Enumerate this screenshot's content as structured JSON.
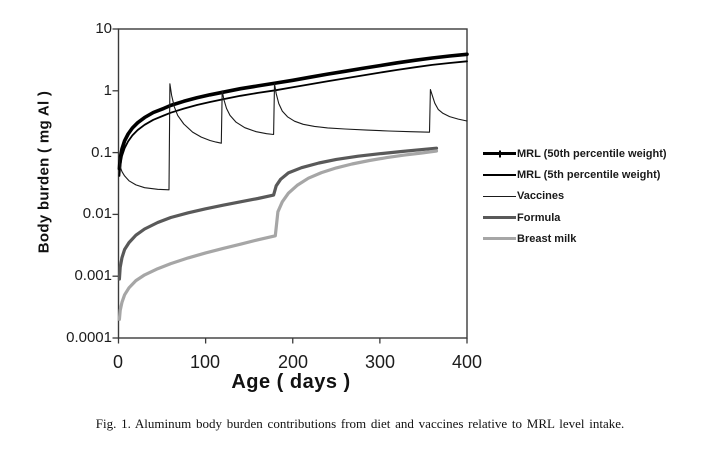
{
  "figure": {
    "caption": "Fig. 1. Aluminum body burden contributions from diet and vaccines relative to MRL level intake."
  },
  "chart_data": {
    "type": "line",
    "title": "",
    "xlabel": "Age ( days )",
    "ylabel": "Body burden ( mg Al )",
    "xlim": [
      0,
      400
    ],
    "ylim": [
      0.0001,
      10
    ],
    "y_scale": "log",
    "grid": false,
    "legend_position": "right-outside",
    "x_tick_labels": [
      "0",
      "100",
      "200",
      "300",
      "400"
    ],
    "x_ticks": [
      0,
      100,
      200,
      300,
      400
    ],
    "y_tick_labels": [
      "10",
      "1",
      "0.1",
      "0.01",
      "0.001",
      "0.0001"
    ],
    "y_ticks": [
      10,
      1,
      0.1,
      0.01,
      0.001,
      0.0001
    ],
    "axis_color": "#3a3a3a",
    "series": [
      {
        "id": "mrl-50",
        "name": "MRL (50th percentile weight)",
        "color": "#000000",
        "width": 3.6,
        "points": [
          [
            1,
            0.055
          ],
          [
            2,
            0.08
          ],
          [
            4,
            0.115
          ],
          [
            7,
            0.155
          ],
          [
            11,
            0.2
          ],
          [
            16,
            0.25
          ],
          [
            22,
            0.305
          ],
          [
            30,
            0.37
          ],
          [
            40,
            0.445
          ],
          [
            52,
            0.52
          ],
          [
            60,
            0.58
          ],
          [
            75,
            0.675
          ],
          [
            90,
            0.77
          ],
          [
            105,
            0.86
          ],
          [
            120,
            0.95
          ],
          [
            140,
            1.08
          ],
          [
            160,
            1.2
          ],
          [
            180,
            1.33
          ],
          [
            200,
            1.48
          ],
          [
            220,
            1.66
          ],
          [
            240,
            1.86
          ],
          [
            260,
            2.07
          ],
          [
            280,
            2.3
          ],
          [
            300,
            2.56
          ],
          [
            320,
            2.84
          ],
          [
            340,
            3.12
          ],
          [
            360,
            3.4
          ],
          [
            380,
            3.66
          ],
          [
            400,
            3.9
          ]
        ]
      },
      {
        "id": "mrl-5",
        "name": "MRL (5th percentile weight)",
        "color": "#000000",
        "width": 1.8,
        "points": [
          [
            1,
            0.042
          ],
          [
            2,
            0.061
          ],
          [
            4,
            0.088
          ],
          [
            7,
            0.118
          ],
          [
            11,
            0.152
          ],
          [
            16,
            0.19
          ],
          [
            22,
            0.232
          ],
          [
            30,
            0.282
          ],
          [
            40,
            0.34
          ],
          [
            52,
            0.398
          ],
          [
            60,
            0.443
          ],
          [
            75,
            0.516
          ],
          [
            90,
            0.59
          ],
          [
            105,
            0.66
          ],
          [
            120,
            0.73
          ],
          [
            140,
            0.83
          ],
          [
            160,
            0.925
          ],
          [
            180,
            1.02
          ],
          [
            200,
            1.14
          ],
          [
            220,
            1.28
          ],
          [
            240,
            1.43
          ],
          [
            260,
            1.59
          ],
          [
            280,
            1.77
          ],
          [
            300,
            1.97
          ],
          [
            320,
            2.18
          ],
          [
            340,
            2.4
          ],
          [
            360,
            2.62
          ],
          [
            380,
            2.82
          ],
          [
            400,
            3.0
          ]
        ]
      },
      {
        "id": "vaccines",
        "name": "Vaccines",
        "color": "#1a1a1a",
        "width": 1.1,
        "points": [
          [
            0.5,
            0.085
          ],
          [
            1,
            0.07
          ],
          [
            2,
            0.059
          ],
          [
            4,
            0.049
          ],
          [
            7,
            0.042
          ],
          [
            12,
            0.035
          ],
          [
            20,
            0.03
          ],
          [
            30,
            0.027
          ],
          [
            45,
            0.0255
          ],
          [
            58,
            0.025
          ],
          [
            59,
            1.3
          ],
          [
            61,
            0.85
          ],
          [
            64,
            0.55
          ],
          [
            68,
            0.4
          ],
          [
            75,
            0.29
          ],
          [
            85,
            0.215
          ],
          [
            95,
            0.178
          ],
          [
            105,
            0.157
          ],
          [
            112,
            0.148
          ],
          [
            118,
            0.142
          ],
          [
            119,
            1.0
          ],
          [
            121,
            0.72
          ],
          [
            124,
            0.52
          ],
          [
            128,
            0.4
          ],
          [
            135,
            0.31
          ],
          [
            145,
            0.253
          ],
          [
            158,
            0.218
          ],
          [
            170,
            0.202
          ],
          [
            178,
            0.196
          ],
          [
            179,
            1.3
          ],
          [
            181,
            0.9
          ],
          [
            184,
            0.62
          ],
          [
            188,
            0.47
          ],
          [
            194,
            0.38
          ],
          [
            202,
            0.322
          ],
          [
            212,
            0.287
          ],
          [
            225,
            0.265
          ],
          [
            240,
            0.251
          ],
          [
            260,
            0.241
          ],
          [
            285,
            0.231
          ],
          [
            310,
            0.224
          ],
          [
            335,
            0.218
          ],
          [
            357,
            0.214
          ],
          [
            358,
            1.05
          ],
          [
            360,
            0.85
          ],
          [
            363,
            0.63
          ],
          [
            367,
            0.5
          ],
          [
            372,
            0.435
          ],
          [
            380,
            0.383
          ],
          [
            390,
            0.348
          ],
          [
            400,
            0.325
          ]
        ]
      },
      {
        "id": "formula",
        "name": "Formula",
        "color": "#595959",
        "width": 3.2,
        "points": [
          [
            1,
            0.0009
          ],
          [
            2,
            0.0014
          ],
          [
            4,
            0.002
          ],
          [
            7,
            0.0027
          ],
          [
            12,
            0.0035
          ],
          [
            20,
            0.0046
          ],
          [
            30,
            0.0058
          ],
          [
            45,
            0.0074
          ],
          [
            60,
            0.0089
          ],
          [
            80,
            0.0106
          ],
          [
            100,
            0.0123
          ],
          [
            120,
            0.0141
          ],
          [
            140,
            0.016
          ],
          [
            160,
            0.0181
          ],
          [
            178,
            0.0205
          ],
          [
            181,
            0.029
          ],
          [
            186,
            0.037
          ],
          [
            195,
            0.047
          ],
          [
            210,
            0.057
          ],
          [
            230,
            0.068
          ],
          [
            250,
            0.0775
          ],
          [
            275,
            0.0875
          ],
          [
            300,
            0.096
          ],
          [
            325,
            0.104
          ],
          [
            345,
            0.111
          ],
          [
            365,
            0.118
          ]
        ]
      },
      {
        "id": "breast-milk",
        "name": "Breast milk",
        "color": "#a6a6a6",
        "width": 3.2,
        "points": [
          [
            1,
            0.0002
          ],
          [
            2,
            0.00028
          ],
          [
            4,
            0.00038
          ],
          [
            7,
            0.0005
          ],
          [
            12,
            0.00065
          ],
          [
            20,
            0.00085
          ],
          [
            30,
            0.00105
          ],
          [
            45,
            0.00132
          ],
          [
            60,
            0.0016
          ],
          [
            80,
            0.00198
          ],
          [
            100,
            0.00238
          ],
          [
            120,
            0.00282
          ],
          [
            140,
            0.0033
          ],
          [
            160,
            0.00388
          ],
          [
            180,
            0.0045
          ],
          [
            183,
            0.011
          ],
          [
            188,
            0.016
          ],
          [
            195,
            0.022
          ],
          [
            205,
            0.0295
          ],
          [
            218,
            0.0385
          ],
          [
            233,
            0.0475
          ],
          [
            250,
            0.0565
          ],
          [
            268,
            0.0655
          ],
          [
            288,
            0.0745
          ],
          [
            308,
            0.083
          ],
          [
            328,
            0.091
          ],
          [
            348,
            0.0985
          ],
          [
            365,
            0.106
          ]
        ]
      }
    ]
  }
}
